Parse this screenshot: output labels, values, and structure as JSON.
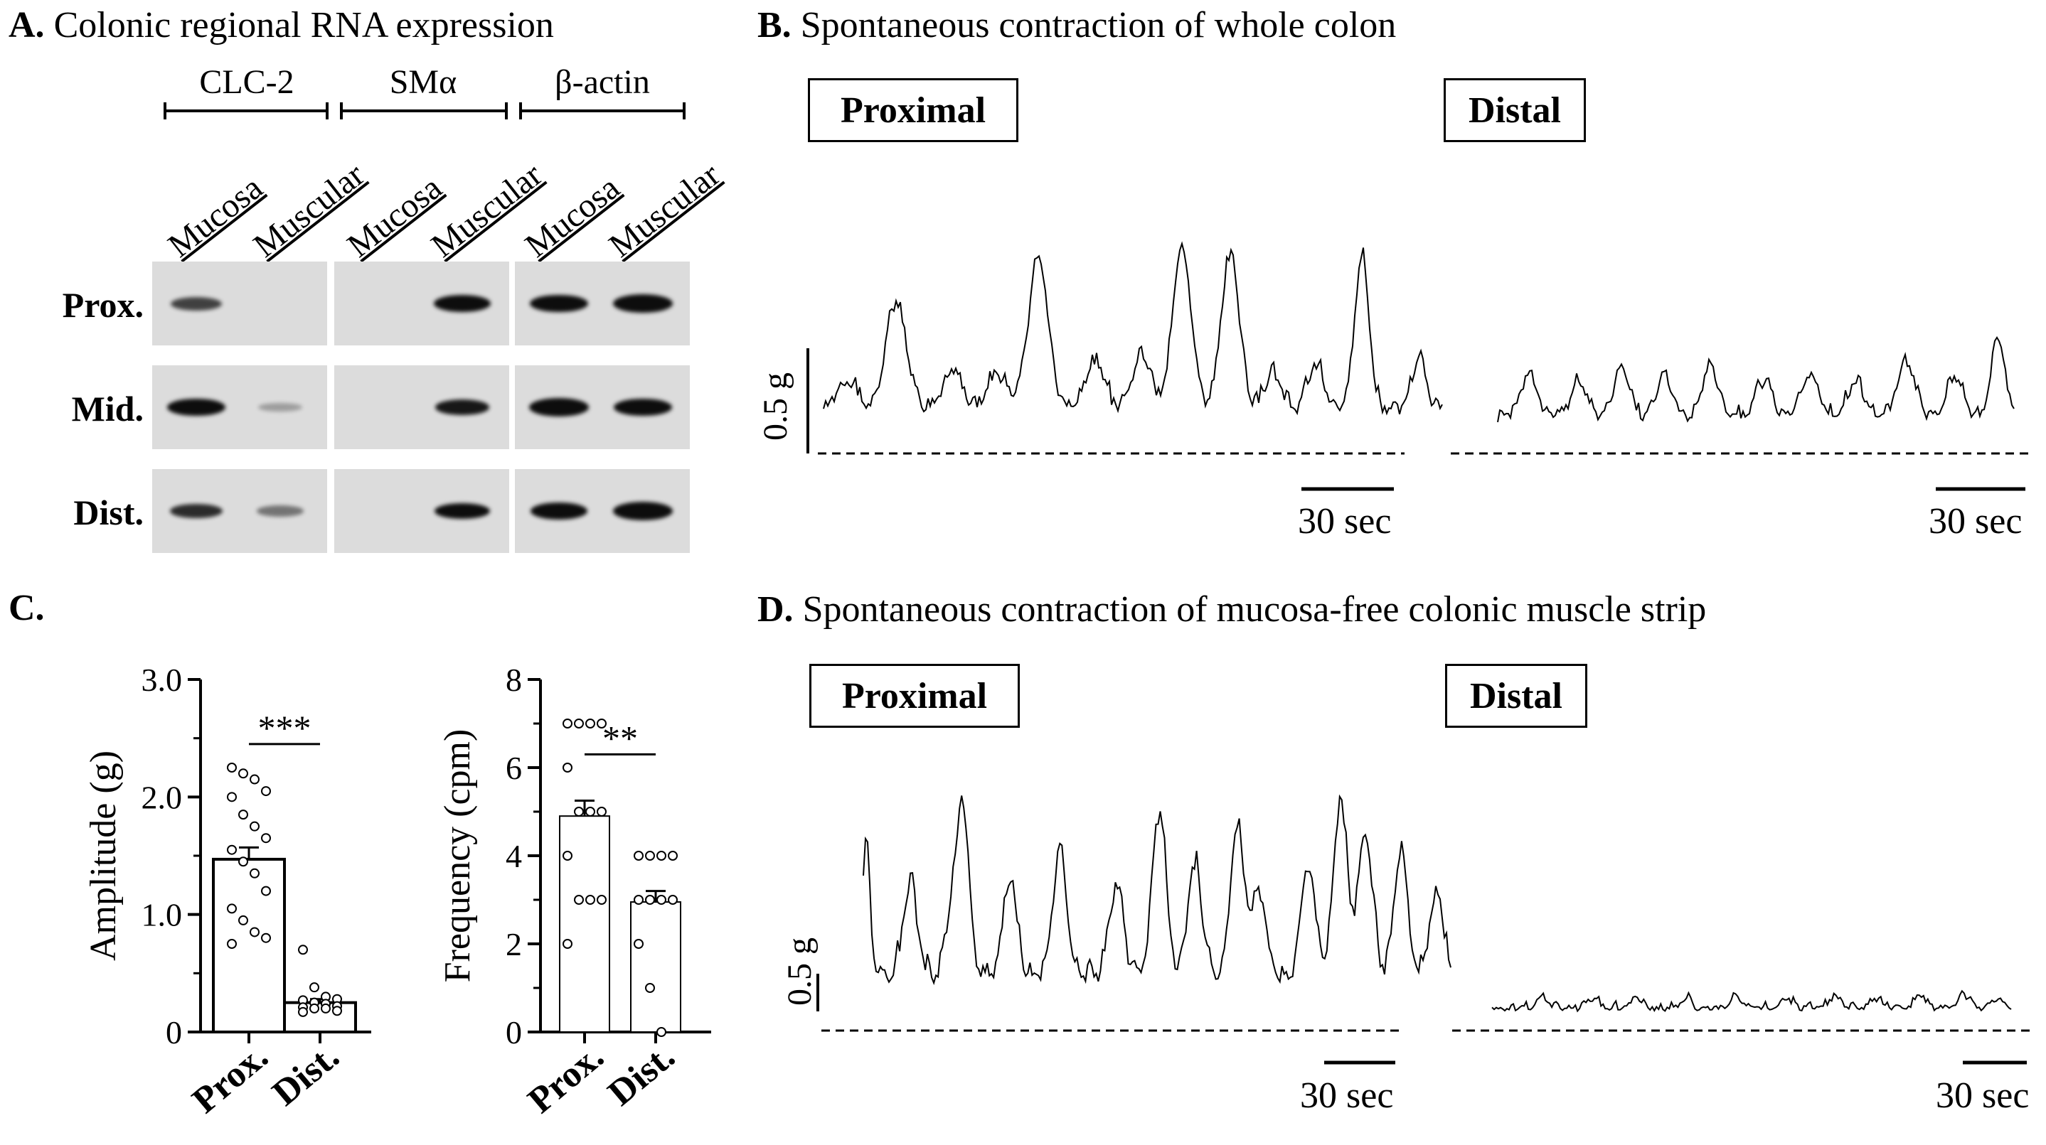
{
  "panel_a": {
    "letter": "A.",
    "title": "Colonic regional RNA expression",
    "genes": [
      "CLC-2",
      "SMα",
      "β-actin"
    ],
    "lanes": [
      "Mucosa",
      "Muscular",
      "Mucosa",
      "Muscular",
      "Mucosa",
      "Muscular"
    ],
    "rows": [
      "Prox.",
      "Mid.",
      "Dist."
    ],
    "band_intensity": {
      "Prox.": [
        0.5,
        0,
        0,
        0.85,
        0.9,
        1.0
      ],
      "Mid.": [
        0.9,
        0.05,
        0,
        0.7,
        1.0,
        0.9
      ],
      "Dist.": [
        0.6,
        0.25,
        0,
        0.75,
        0.85,
        1.0
      ]
    }
  },
  "panel_b": {
    "letter": "B.",
    "title": "Spontaneous contraction of whole colon",
    "proximal_label": "Proximal",
    "distal_label": "Distal",
    "y_scale_label": "0.5 g",
    "time_scale_label": "30 sec"
  },
  "panel_c": {
    "letter": "C."
  },
  "panel_d": {
    "letter": "D.",
    "title": "Spontaneous contraction of mucosa-free colonic muscle strip",
    "proximal_label": "Proximal",
    "distal_label": "Distal",
    "y_scale_label": "0.5 g",
    "time_scale_label": "30 sec"
  },
  "chart_data": [
    {
      "type": "bar",
      "categories": [
        "Prox.",
        "Dist."
      ],
      "values": [
        1.47,
        0.25
      ],
      "errors": [
        0.1,
        0.03
      ],
      "ylabel": "Amplitude (g)",
      "ylim": [
        0,
        3.0
      ],
      "yticks": [
        0,
        1.0,
        2.0,
        3.0
      ],
      "ytick_labels": [
        "0",
        "1.0",
        "2.0",
        "3.0"
      ],
      "significance": "***",
      "points": {
        "Prox.": [
          2.25,
          2.2,
          2.15,
          2.05,
          2.0,
          1.85,
          1.75,
          1.65,
          1.55,
          1.45,
          1.35,
          1.2,
          1.05,
          0.95,
          0.85,
          0.8,
          0.75
        ],
        "Dist.": [
          0.7,
          0.38,
          0.3,
          0.28,
          0.27,
          0.25,
          0.24,
          0.22,
          0.21,
          0.2,
          0.2,
          0.18,
          0.17
        ]
      }
    },
    {
      "type": "bar",
      "categories": [
        "Prox.",
        "Dist."
      ],
      "values": [
        4.9,
        2.95
      ],
      "errors": [
        0.35,
        0.25
      ],
      "ylabel": "Frequency (cpm)",
      "ylim": [
        0,
        8
      ],
      "yticks": [
        0,
        2,
        4,
        6,
        8
      ],
      "ytick_labels": [
        "0",
        "2",
        "4",
        "6",
        "8"
      ],
      "significance": "**",
      "points": {
        "Prox.": [
          7,
          7,
          7,
          7,
          6,
          5,
          5,
          5,
          4,
          3,
          3,
          3,
          2
        ],
        "Dist.": [
          4,
          4,
          4,
          4,
          3,
          3,
          3,
          3,
          2,
          1,
          0
        ]
      }
    }
  ]
}
